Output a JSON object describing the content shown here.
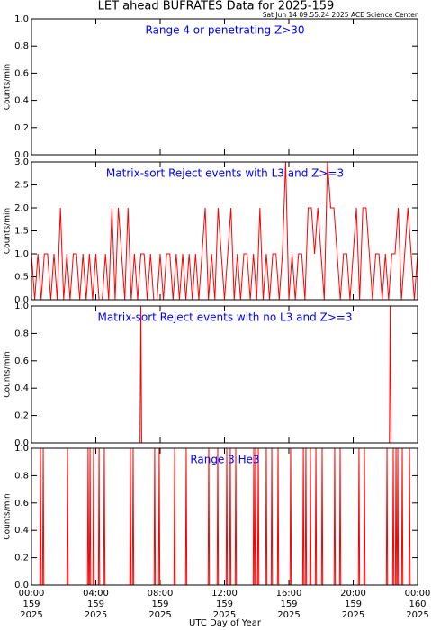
{
  "header": {
    "title": "LET ahead BUFRATES Data for 2025-159",
    "subtitle": "Sat Jun 14 09:55:24 2025 ACE Science Center"
  },
  "xaxis": {
    "label": "UTC Day of Year",
    "xlim": [
      0,
      24
    ],
    "xticks": [
      {
        "value": 0,
        "label": "00:00"
      },
      {
        "value": 4,
        "label": "04:00"
      },
      {
        "value": 8,
        "label": "08:00"
      },
      {
        "value": 12,
        "label": "12:00"
      },
      {
        "value": 16,
        "label": "16:00"
      },
      {
        "value": 20,
        "label": "20:00"
      },
      {
        "value": 24,
        "label": "00:00"
      }
    ],
    "tick_days": [
      "159",
      "159",
      "159",
      "159",
      "159",
      "159",
      "160"
    ],
    "tick_years": [
      "2025",
      "2025",
      "2025",
      "2025",
      "2025",
      "2025",
      "2025"
    ]
  },
  "chart_data": [
    {
      "type": "line",
      "title": "Range 4 or  penetrating Z>30",
      "ylabel": "Counts/min",
      "color": "#ff0000",
      "annotation_color": "#0000ff",
      "ylim": [
        0,
        1
      ],
      "yticks": [
        {
          "value": 0,
          "label": "0.0"
        },
        {
          "value": 0.2,
          "label": "0.2"
        },
        {
          "value": 0.4,
          "label": "0.4"
        },
        {
          "value": 0.6,
          "label": "0.6"
        },
        {
          "value": 0.8,
          "label": "0.8"
        },
        {
          "value": 1,
          "label": "1.0"
        }
      ],
      "x": [
        0,
        24
      ],
      "values": [
        0,
        0
      ]
    },
    {
      "type": "line",
      "title": "Matrix-sort Reject events with L3 and Z>=3",
      "ylabel": "Counts/min",
      "color": "#ff0000",
      "annotation_color": "#0000ff",
      "ylim": [
        0,
        3
      ],
      "yticks": [
        {
          "value": 0,
          "label": "0.0"
        },
        {
          "value": 0.5,
          "label": "0.5"
        },
        {
          "value": 1,
          "label": "1.0"
        },
        {
          "value": 1.5,
          "label": "1.5"
        },
        {
          "value": 2,
          "label": "2.0"
        },
        {
          "value": 2.5,
          "label": "2.5"
        },
        {
          "value": 3,
          "label": "3.0"
        }
      ],
      "x": [
        0,
        0.2,
        0.4,
        0.6,
        0.8,
        1,
        1.2,
        1.4,
        1.6,
        1.8,
        2,
        2.2,
        2.4,
        2.6,
        2.8,
        3,
        3.2,
        3.4,
        3.6,
        3.8,
        4,
        4.2,
        4.4,
        4.6,
        4.8,
        5,
        5.2,
        5.4,
        5.6,
        5.8,
        6,
        6.2,
        6.4,
        6.6,
        6.8,
        7,
        7.2,
        7.4,
        7.6,
        7.8,
        8,
        8.2,
        8.4,
        8.6,
        8.8,
        9,
        9.2,
        9.4,
        9.6,
        9.8,
        10,
        10.2,
        10.4,
        10.6,
        10.8,
        11,
        11.2,
        11.4,
        11.6,
        11.8,
        12,
        12.2,
        12.4,
        12.6,
        12.8,
        13,
        13.2,
        13.4,
        13.6,
        13.8,
        14,
        14.2,
        14.4,
        14.6,
        14.8,
        15,
        15.2,
        15.4,
        15.6,
        15.8,
        16,
        16.2,
        16.4,
        16.6,
        16.8,
        17,
        17.2,
        17.4,
        17.6,
        17.8,
        18,
        18.2,
        18.4,
        18.6,
        18.8,
        19,
        19.2,
        19.4,
        19.6,
        19.8,
        20,
        20.2,
        20.4,
        20.6,
        20.8,
        21,
        21.2,
        21.4,
        21.6,
        21.8,
        22,
        22.2,
        22.4,
        22.6,
        22.8,
        23,
        23.2,
        23.4,
        23.6,
        23.8,
        24
      ],
      "values": [
        1,
        0,
        1,
        0,
        1,
        1,
        0,
        1,
        0,
        2,
        0,
        1,
        0,
        1,
        1,
        0,
        1,
        0,
        1,
        0,
        1,
        0,
        0,
        1,
        0,
        2,
        0,
        2,
        1,
        0,
        2,
        0,
        1,
        0,
        1,
        1,
        0,
        1,
        0,
        0,
        1,
        0,
        1,
        1,
        0,
        1,
        0,
        1,
        0,
        1,
        0,
        1,
        0,
        1,
        2,
        0,
        1,
        0,
        2,
        1,
        0,
        1,
        2,
        0,
        1,
        0,
        1,
        1,
        0,
        1,
        0,
        2,
        0,
        1,
        0,
        1,
        1,
        0,
        1,
        3,
        0,
        1,
        0,
        1,
        1,
        0,
        2,
        2,
        1,
        2,
        1,
        0,
        3,
        2,
        2,
        1,
        0,
        1,
        1,
        0,
        1,
        2,
        0,
        2,
        2,
        1,
        0,
        1,
        1,
        0,
        1,
        0,
        1,
        1,
        2,
        0,
        1,
        2,
        1,
        0,
        1
      ]
    },
    {
      "type": "line",
      "title": "Matrix-sort Reject events with no L3 and Z>=3",
      "ylabel": "Counts/min",
      "color": "#ff0000",
      "annotation_color": "#0000ff",
      "ylim": [
        0,
        1
      ],
      "yticks": [
        {
          "value": 0,
          "label": "0.0"
        },
        {
          "value": 0.2,
          "label": "0.2"
        },
        {
          "value": 0.4,
          "label": "0.4"
        },
        {
          "value": 0.6,
          "label": "0.6"
        },
        {
          "value": 0.8,
          "label": "0.8"
        },
        {
          "value": 1,
          "label": "1.0"
        }
      ],
      "x": [
        0,
        6.75,
        6.8,
        6.85,
        22.25,
        22.3,
        22.35,
        24
      ],
      "values": [
        0,
        0,
        1,
        0,
        0,
        1,
        0,
        0
      ]
    },
    {
      "type": "line",
      "title": "Range 3 He3",
      "ylabel": "Counts/min",
      "color": "#ff0000",
      "annotation_color": "#0000ff",
      "ylim": [
        0,
        1
      ],
      "yticks": [
        {
          "value": 0,
          "label": "0.0"
        },
        {
          "value": 0.2,
          "label": "0.2"
        },
        {
          "value": 0.4,
          "label": "0.4"
        },
        {
          "value": 0.6,
          "label": "0.6"
        },
        {
          "value": 0.8,
          "label": "0.8"
        },
        {
          "value": 1,
          "label": "1.0"
        }
      ],
      "x": [
        0,
        0.52,
        0.56,
        0.6,
        0.69,
        0.73,
        0.77,
        2.2,
        2.24,
        2.28,
        3.48,
        3.52,
        3.56,
        3.6,
        3.64,
        3.68,
        3.82,
        3.86,
        3.9,
        4.16,
        4.2,
        4.24,
        4.49,
        4.53,
        4.57,
        6.11,
        6.15,
        6.19,
        6.28,
        6.32,
        6.36,
        7.62,
        7.66,
        7.7,
        7.9,
        7.94,
        7.98,
        8.86,
        8.9,
        8.94,
        9.58,
        9.62,
        9.66,
        10.98,
        11.02,
        11.06,
        11.54,
        11.58,
        11.62,
        12.1,
        12.14,
        12.18,
        12.32,
        12.36,
        12.4,
        12.66,
        12.7,
        12.74,
        13.78,
        13.82,
        13.86,
        13.89,
        13.93,
        13.97,
        14.06,
        14.1,
        14.14,
        14.56,
        14.6,
        14.64,
        14.9,
        14.94,
        14.98,
        15.29,
        15.33,
        15.37,
        16.07,
        16.11,
        16.15,
        16.86,
        16.9,
        16.94,
        17.02,
        17.06,
        17.1,
        17.3,
        17.34,
        17.38,
        17.64,
        17.68,
        17.72,
        18.03,
        18.07,
        18.11,
        18.81,
        18.85,
        18.89,
        19.15,
        19.19,
        19.23,
        20.32,
        20.36,
        20.4,
        20.66,
        20.7,
        20.74,
        22.06,
        22.1,
        22.14,
        22.45,
        22.49,
        22.53,
        22.62,
        22.66,
        22.7,
        22.73,
        22.77,
        22.81,
        23.01,
        23.05,
        23.09,
        23.46,
        23.5,
        23.54,
        24
      ],
      "values": [
        0,
        0,
        1,
        0,
        0,
        1,
        0,
        0,
        1,
        0,
        0,
        1,
        0,
        0,
        1,
        0,
        0,
        1,
        0,
        0,
        1,
        0,
        0,
        1,
        0,
        0,
        1,
        0,
        0,
        1,
        0,
        0,
        1,
        0,
        0,
        1,
        0,
        0,
        1,
        0,
        0,
        1,
        0,
        0,
        1,
        0,
        0,
        1,
        0,
        0,
        1,
        0,
        0,
        1,
        0,
        0,
        1,
        0,
        0,
        1,
        0,
        0,
        1,
        0,
        0,
        1,
        0,
        0,
        1,
        0,
        0,
        1,
        0,
        0,
        1,
        0,
        0,
        1,
        0,
        0,
        1,
        0,
        0,
        1,
        0,
        0,
        1,
        0,
        0,
        1,
        0,
        0,
        1,
        0,
        0,
        1,
        0,
        0,
        1,
        0,
        0,
        1,
        0,
        0,
        1,
        0,
        0,
        1,
        0,
        0,
        1,
        0,
        0,
        1,
        0,
        0,
        1,
        0,
        0,
        1,
        0,
        0,
        1,
        0,
        0
      ]
    }
  ]
}
